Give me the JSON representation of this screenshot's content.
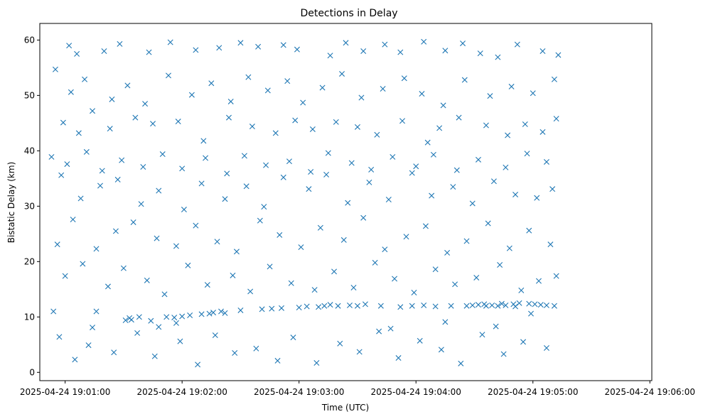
{
  "chart_data": {
    "type": "scatter",
    "title": "Detections in Delay",
    "xlabel": "Time (UTC)",
    "ylabel": "Bistatic Delay (km)",
    "marker": "x",
    "color": "#1f77b4",
    "x_range": [
      "2025-04-24 19:00:47",
      "2025-04-24 19:06:01"
    ],
    "ylim": [
      -1.5,
      63
    ],
    "x_ticks": [
      "2025-04-24 19:01:00",
      "2025-04-24 19:02:00",
      "2025-04-24 19:03:00",
      "2025-04-24 19:04:00",
      "2025-04-24 19:05:00",
      "2025-04-24 19:06:00"
    ],
    "y_ticks": [
      0,
      10,
      20,
      30,
      40,
      50,
      60
    ],
    "grid": false,
    "legend": "none",
    "x_unit": "seconds after 2025-04-24 19:00:00",
    "points": [
      [
        74,
        8.1
      ],
      [
        76,
        11.0
      ],
      [
        91,
        9.4
      ],
      [
        94,
        9.5
      ],
      [
        98,
        10.0
      ],
      [
        104,
        9.3
      ],
      [
        108,
        8.2
      ],
      [
        112,
        10.0
      ],
      [
        116,
        9.9
      ],
      [
        120,
        10.1
      ],
      [
        124,
        10.3
      ],
      [
        130,
        10.5
      ],
      [
        134,
        10.6
      ],
      [
        136,
        10.8
      ],
      [
        140,
        11.0
      ],
      [
        150,
        11.2
      ],
      [
        161,
        11.4
      ],
      [
        166,
        11.5
      ],
      [
        180,
        11.7
      ],
      [
        184,
        11.9
      ],
      [
        190,
        11.8
      ],
      [
        193,
        12.0
      ],
      [
        196,
        12.2
      ],
      [
        200,
        12.0
      ],
      [
        206,
        12.1
      ],
      [
        210,
        12.0
      ],
      [
        214,
        12.3
      ],
      [
        222,
        12.0
      ],
      [
        232,
        11.8
      ],
      [
        238,
        12.0
      ],
      [
        244,
        12.1
      ],
      [
        250,
        11.9
      ],
      [
        258,
        12.0
      ],
      [
        266,
        12.0
      ],
      [
        272,
        12.2
      ],
      [
        276,
        12.0
      ],
      [
        279,
        12.1
      ],
      [
        282,
        12.0
      ],
      [
        286,
        12.1
      ],
      [
        290,
        12.3
      ],
      [
        293,
        12.5
      ],
      [
        298,
        12.4
      ],
      [
        301,
        12.3
      ],
      [
        304,
        12.2
      ],
      [
        307,
        12.1
      ],
      [
        311,
        12.0
      ],
      [
        291,
        11.9
      ],
      [
        284,
        12.4
      ],
      [
        275,
        12.3
      ],
      [
        269,
        12.1
      ],
      [
        62,
        59.0
      ],
      [
        66,
        57.5
      ],
      [
        80,
        58.0
      ],
      [
        88,
        59.3
      ],
      [
        103,
        57.8
      ],
      [
        114,
        59.6
      ],
      [
        127,
        58.2
      ],
      [
        139,
        58.6
      ],
      [
        150,
        59.5
      ],
      [
        159,
        58.8
      ],
      [
        172,
        59.1
      ],
      [
        179,
        58.3
      ],
      [
        196,
        57.2
      ],
      [
        204,
        59.5
      ],
      [
        213,
        58.0
      ],
      [
        224,
        59.2
      ],
      [
        232,
        57.8
      ],
      [
        244,
        59.7
      ],
      [
        255,
        58.1
      ],
      [
        264,
        59.4
      ],
      [
        273,
        57.6
      ],
      [
        282,
        56.9
      ],
      [
        292,
        59.2
      ],
      [
        305,
        58.0
      ],
      [
        313,
        57.3
      ],
      [
        59,
        45.1
      ],
      [
        67,
        43.2
      ],
      [
        74,
        47.2
      ],
      [
        83,
        44.0
      ],
      [
        96,
        46.0
      ],
      [
        105,
        44.9
      ],
      [
        118,
        45.3
      ],
      [
        131,
        41.8
      ],
      [
        144,
        46.0
      ],
      [
        156,
        44.4
      ],
      [
        168,
        43.2
      ],
      [
        178,
        45.5
      ],
      [
        187,
        43.9
      ],
      [
        199,
        45.2
      ],
      [
        210,
        44.3
      ],
      [
        220,
        42.9
      ],
      [
        233,
        45.4
      ],
      [
        246,
        41.5
      ],
      [
        252,
        44.1
      ],
      [
        262,
        46.0
      ],
      [
        276,
        44.6
      ],
      [
        287,
        42.8
      ],
      [
        296,
        44.8
      ],
      [
        305,
        43.4
      ],
      [
        312,
        45.8
      ],
      [
        58,
        35.6
      ],
      [
        68,
        31.4
      ],
      [
        78,
        33.7
      ],
      [
        87,
        34.8
      ],
      [
        99,
        30.4
      ],
      [
        108,
        32.8
      ],
      [
        121,
        29.4
      ],
      [
        130,
        34.1
      ],
      [
        142,
        31.3
      ],
      [
        153,
        33.6
      ],
      [
        162,
        29.9
      ],
      [
        172,
        35.2
      ],
      [
        185,
        33.1
      ],
      [
        194,
        35.7
      ],
      [
        205,
        30.6
      ],
      [
        216,
        34.3
      ],
      [
        226,
        31.2
      ],
      [
        238,
        36.0
      ],
      [
        248,
        31.9
      ],
      [
        259,
        33.5
      ],
      [
        269,
        30.5
      ],
      [
        280,
        34.5
      ],
      [
        291,
        32.1
      ],
      [
        302,
        31.5
      ],
      [
        310,
        33.1
      ],
      [
        56,
        23.1
      ],
      [
        64,
        27.6
      ],
      [
        76,
        22.3
      ],
      [
        86,
        25.5
      ],
      [
        95,
        27.1
      ],
      [
        107,
        24.2
      ],
      [
        117,
        22.8
      ],
      [
        127,
        26.5
      ],
      [
        138,
        23.6
      ],
      [
        148,
        21.8
      ],
      [
        160,
        27.4
      ],
      [
        170,
        24.8
      ],
      [
        181,
        22.6
      ],
      [
        191,
        26.1
      ],
      [
        203,
        23.9
      ],
      [
        213,
        27.9
      ],
      [
        224,
        22.2
      ],
      [
        235,
        24.5
      ],
      [
        245,
        26.4
      ],
      [
        256,
        21.6
      ],
      [
        266,
        23.7
      ],
      [
        277,
        26.9
      ],
      [
        288,
        22.4
      ],
      [
        298,
        25.6
      ],
      [
        309,
        23.1
      ],
      [
        60,
        17.4
      ],
      [
        69,
        19.6
      ],
      [
        82,
        15.5
      ],
      [
        90,
        18.8
      ],
      [
        102,
        16.6
      ],
      [
        111,
        14.1
      ],
      [
        123,
        19.3
      ],
      [
        133,
        15.8
      ],
      [
        146,
        17.5
      ],
      [
        155,
        14.6
      ],
      [
        165,
        19.1
      ],
      [
        176,
        16.1
      ],
      [
        188,
        14.9
      ],
      [
        198,
        18.2
      ],
      [
        208,
        15.3
      ],
      [
        219,
        19.8
      ],
      [
        229,
        16.9
      ],
      [
        239,
        14.4
      ],
      [
        250,
        18.6
      ],
      [
        260,
        15.9
      ],
      [
        271,
        17.1
      ],
      [
        283,
        19.4
      ],
      [
        294,
        14.8
      ],
      [
        303,
        16.5
      ],
      [
        312,
        17.4
      ],
      [
        57,
        6.4
      ],
      [
        65,
        2.3
      ],
      [
        72,
        4.9
      ],
      [
        85,
        3.6
      ],
      [
        97,
        7.1
      ],
      [
        106,
        2.9
      ],
      [
        119,
        5.6
      ],
      [
        128,
        1.4
      ],
      [
        137,
        6.7
      ],
      [
        147,
        3.5
      ],
      [
        158,
        4.3
      ],
      [
        169,
        2.1
      ],
      [
        177,
        6.3
      ],
      [
        189,
        1.7
      ],
      [
        201,
        5.2
      ],
      [
        211,
        3.7
      ],
      [
        221,
        7.4
      ],
      [
        231,
        2.6
      ],
      [
        242,
        5.7
      ],
      [
        253,
        4.1
      ],
      [
        263,
        1.6
      ],
      [
        274,
        6.8
      ],
      [
        285,
        3.3
      ],
      [
        295,
        5.5
      ],
      [
        307,
        4.4
      ],
      [
        55,
        54.7
      ],
      [
        63,
        50.6
      ],
      [
        70,
        52.9
      ],
      [
        84,
        49.3
      ],
      [
        92,
        51.8
      ],
      [
        101,
        48.5
      ],
      [
        113,
        53.6
      ],
      [
        125,
        50.1
      ],
      [
        135,
        52.2
      ],
      [
        145,
        48.9
      ],
      [
        154,
        53.3
      ],
      [
        164,
        50.9
      ],
      [
        174,
        52.6
      ],
      [
        182,
        48.7
      ],
      [
        192,
        51.4
      ],
      [
        202,
        53.9
      ],
      [
        212,
        49.6
      ],
      [
        223,
        51.2
      ],
      [
        234,
        53.1
      ],
      [
        243,
        50.3
      ],
      [
        254,
        48.2
      ],
      [
        265,
        52.8
      ],
      [
        278,
        49.9
      ],
      [
        289,
        51.6
      ],
      [
        300,
        50.4
      ],
      [
        311,
        52.9
      ],
      [
        53,
        38.9
      ],
      [
        61,
        37.6
      ],
      [
        71,
        39.8
      ],
      [
        79,
        36.4
      ],
      [
        89,
        38.3
      ],
      [
        100,
        37.1
      ],
      [
        110,
        39.4
      ],
      [
        120,
        36.8
      ],
      [
        132,
        38.7
      ],
      [
        143,
        35.9
      ],
      [
        152,
        39.1
      ],
      [
        163,
        37.4
      ],
      [
        175,
        38.1
      ],
      [
        186,
        36.2
      ],
      [
        195,
        39.6
      ],
      [
        207,
        37.8
      ],
      [
        217,
        36.6
      ],
      [
        228,
        38.9
      ],
      [
        240,
        37.2
      ],
      [
        249,
        39.3
      ],
      [
        261,
        36.5
      ],
      [
        272,
        38.4
      ],
      [
        286,
        37.0
      ],
      [
        297,
        39.5
      ],
      [
        307,
        38.0
      ],
      [
        54,
        11.0
      ],
      [
        93,
        9.8
      ],
      [
        117,
        8.9
      ],
      [
        142,
        10.7
      ],
      [
        171,
        11.6
      ],
      [
        227,
        7.9
      ],
      [
        255,
        9.1
      ],
      [
        281,
        8.3
      ],
      [
        299,
        10.6
      ]
    ]
  }
}
